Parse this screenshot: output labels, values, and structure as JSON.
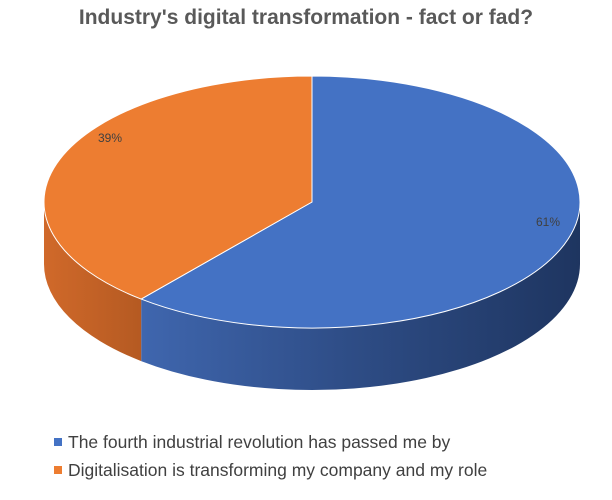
{
  "chart_data": {
    "type": "pie",
    "title": "Industry's digital transformation - fact or fad?",
    "slices": [
      {
        "label": "The fourth industrial revolution has passed me by",
        "value": 61,
        "data_label": "61%",
        "color": "#4472c4"
      },
      {
        "label": "Digitalisation is transforming my company and my role",
        "value": 39,
        "data_label": "39%",
        "color": "#ed7d31"
      }
    ],
    "style": "3d",
    "legend_position": "bottom-left"
  }
}
